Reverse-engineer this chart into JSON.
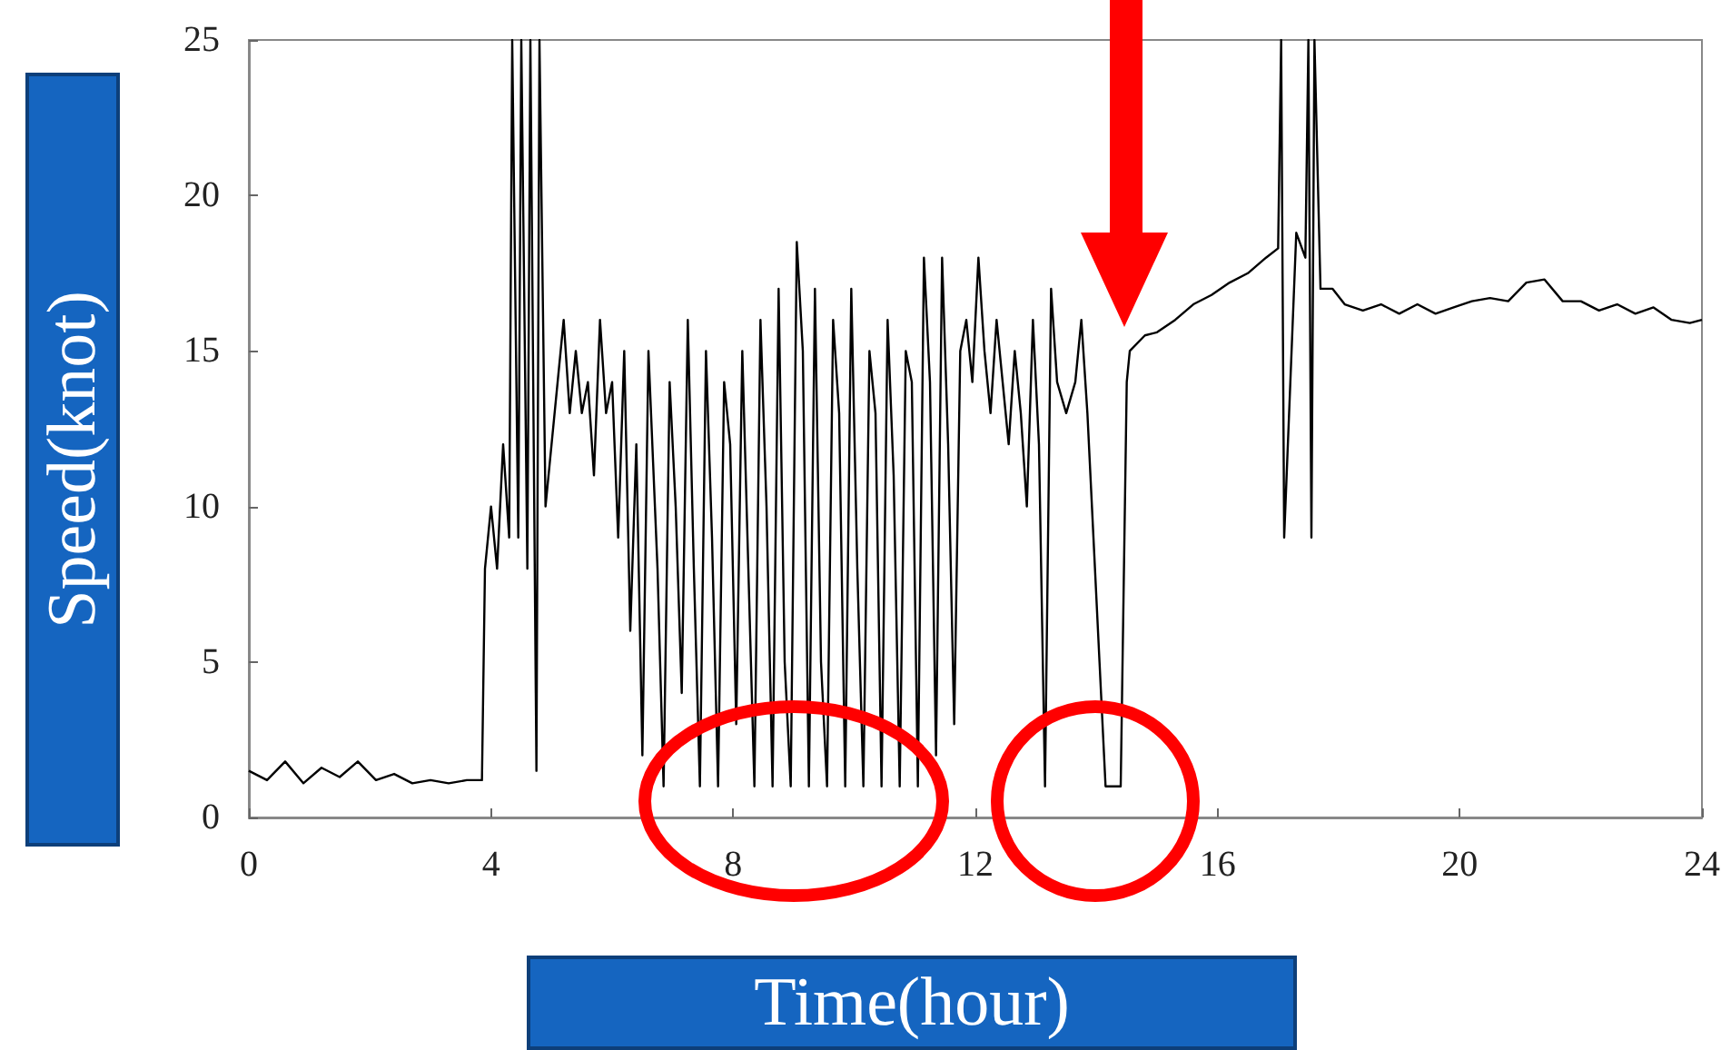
{
  "chart_data": {
    "type": "line",
    "xlabel": "Time(hour)",
    "ylabel": "Speed(knot)",
    "xlim": [
      0,
      24
    ],
    "xticks": [
      0,
      4,
      8,
      12,
      16,
      20,
      24
    ],
    "ylim": [
      0,
      25
    ],
    "yticks": [
      0,
      5,
      10,
      15,
      20,
      25
    ],
    "grid": false,
    "marker": "none",
    "line_style": "solid",
    "series": [
      {
        "color": "#000000",
        "x": [
          0,
          0.3,
          0.6,
          0.9,
          1.2,
          1.5,
          1.8,
          2.1,
          2.4,
          2.7,
          3.0,
          3.3,
          3.6,
          3.85,
          3.9,
          4.0,
          4.1,
          4.2,
          4.3,
          4.35,
          4.45,
          4.5,
          4.6,
          4.65,
          4.75,
          4.8,
          4.9,
          5.0,
          5.1,
          5.2,
          5.3,
          5.4,
          5.5,
          5.6,
          5.7,
          5.8,
          5.9,
          6.0,
          6.1,
          6.2,
          6.3,
          6.4,
          6.5,
          6.6,
          6.75,
          6.85,
          6.95,
          7.05,
          7.15,
          7.25,
          7.35,
          7.45,
          7.55,
          7.65,
          7.75,
          7.85,
          7.95,
          8.05,
          8.15,
          8.25,
          8.35,
          8.45,
          8.55,
          8.65,
          8.75,
          8.85,
          8.95,
          9.05,
          9.15,
          9.25,
          9.35,
          9.45,
          9.55,
          9.65,
          9.75,
          9.85,
          9.95,
          10.05,
          10.15,
          10.25,
          10.35,
          10.45,
          10.55,
          10.65,
          10.75,
          10.85,
          10.95,
          11.05,
          11.15,
          11.25,
          11.35,
          11.45,
          11.55,
          11.65,
          11.75,
          11.85,
          11.95,
          12.05,
          12.15,
          12.25,
          12.35,
          12.45,
          12.55,
          12.65,
          12.75,
          12.85,
          12.95,
          13.05,
          13.15,
          13.25,
          13.35,
          13.5,
          13.65,
          13.75,
          13.85,
          13.95,
          14.05,
          14.15,
          14.3,
          14.4,
          14.5,
          14.55,
          14.8,
          15.0,
          15.3,
          15.6,
          15.9,
          16.2,
          16.5,
          16.8,
          17.0,
          17.05,
          17.1,
          17.3,
          17.45,
          17.5,
          17.55,
          17.6,
          17.7,
          17.9,
          18.1,
          18.4,
          18.7,
          19.0,
          19.3,
          19.6,
          19.9,
          20.2,
          20.5,
          20.8,
          21.1,
          21.4,
          21.7,
          22.0,
          22.3,
          22.6,
          22.9,
          23.2,
          23.5,
          23.8,
          24.0
        ],
        "values": [
          1.5,
          1.2,
          1.8,
          1.1,
          1.6,
          1.3,
          1.8,
          1.2,
          1.4,
          1.1,
          1.2,
          1.1,
          1.2,
          1.2,
          8,
          10,
          8,
          12,
          9,
          25,
          9,
          25,
          8,
          25,
          1.5,
          25,
          10,
          12,
          14,
          16,
          13,
          15,
          13,
          14,
          11,
          16,
          13,
          14,
          9,
          15,
          6,
          12,
          2,
          15,
          8,
          1,
          14,
          10,
          4,
          16,
          8,
          1,
          15,
          9,
          1,
          14,
          12,
          3,
          15,
          8,
          1,
          16,
          10,
          1,
          17,
          5,
          1,
          18.5,
          15,
          1,
          17,
          5,
          1,
          16,
          13,
          1,
          17,
          8,
          1,
          15,
          13,
          1,
          16,
          11,
          1,
          15,
          14,
          1,
          18,
          14,
          2,
          18,
          12,
          3,
          15,
          16,
          14,
          18,
          15,
          13,
          16,
          14,
          12,
          15,
          13,
          10,
          16,
          12,
          1,
          17,
          14,
          13,
          14,
          16,
          13,
          9,
          5,
          1,
          1,
          1,
          14,
          15,
          15.5,
          15.6,
          16,
          16.5,
          16.8,
          17.2,
          17.5,
          18,
          18.3,
          25,
          9,
          18.8,
          18,
          25,
          9,
          25,
          17,
          17,
          16.5,
          16.3,
          16.5,
          16.2,
          16.5,
          16.2,
          16.4,
          16.6,
          16.7,
          16.6,
          17.2,
          17.3,
          16.6,
          16.6,
          16.3,
          16.5,
          16.2,
          16.4,
          16,
          15.9,
          16
        ]
      }
    ]
  }
}
